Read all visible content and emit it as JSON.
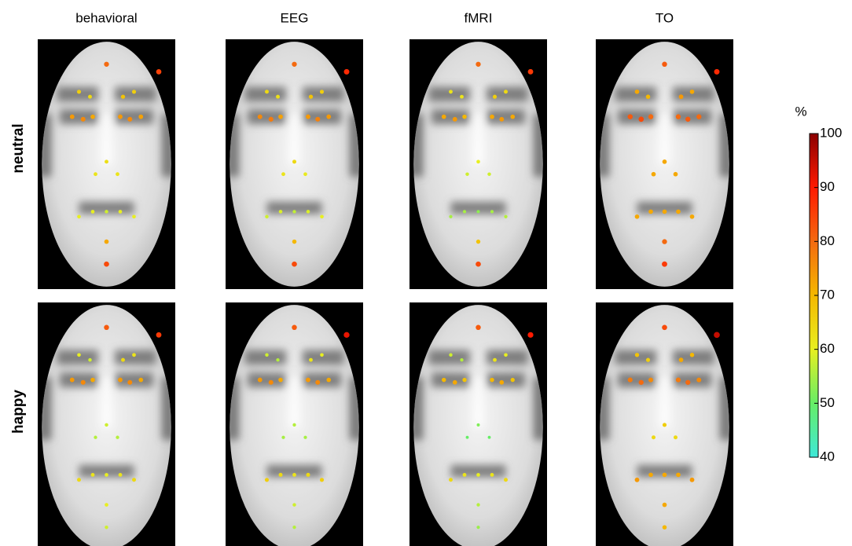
{
  "columns": [
    "behavioral",
    "EEG",
    "fMRI",
    "TO"
  ],
  "rows": [
    "neutral",
    "happy"
  ],
  "colorbar": {
    "label": "%",
    "lim": [
      40,
      100
    ],
    "ticks": [
      40,
      50,
      60,
      70,
      80,
      90,
      100
    ]
  },
  "maps": [
    [
      [
        80,
        85,
        66,
        64,
        68,
        66,
        74,
        76,
        72,
        74,
        76,
        73,
        63,
        62,
        62,
        60,
        60,
        58,
        60,
        60,
        72,
        84
      ],
      [
        80,
        88,
        64,
        63,
        68,
        66,
        76,
        78,
        73,
        74,
        77,
        74,
        64,
        62,
        61,
        58,
        59,
        57,
        59,
        60,
        70,
        84
      ],
      [
        80,
        86,
        62,
        62,
        66,
        64,
        72,
        74,
        70,
        72,
        74,
        72,
        60,
        58,
        58,
        55,
        55,
        53,
        55,
        56,
        68,
        84
      ],
      [
        82,
        88,
        72,
        70,
        74,
        72,
        82,
        84,
        80,
        80,
        82,
        80,
        72,
        72,
        72,
        72,
        72,
        72,
        72,
        72,
        80,
        86
      ]
    ],
    [
      [
        82,
        86,
        60,
        58,
        64,
        62,
        74,
        76,
        72,
        74,
        76,
        72,
        58,
        56,
        56,
        64,
        62,
        60,
        62,
        64,
        60,
        58
      ],
      [
        82,
        92,
        58,
        56,
        62,
        60,
        74,
        76,
        72,
        74,
        76,
        72,
        56,
        55,
        55,
        66,
        64,
        62,
        64,
        66,
        58,
        56
      ],
      [
        82,
        90,
        58,
        56,
        62,
        60,
        70,
        72,
        68,
        70,
        72,
        68,
        52,
        50,
        50,
        64,
        62,
        60,
        62,
        64,
        56,
        54
      ],
      [
        84,
        95,
        68,
        66,
        72,
        70,
        78,
        80,
        76,
        78,
        80,
        76,
        66,
        64,
        64,
        74,
        72,
        72,
        72,
        74,
        72,
        70
      ]
    ]
  ]
}
